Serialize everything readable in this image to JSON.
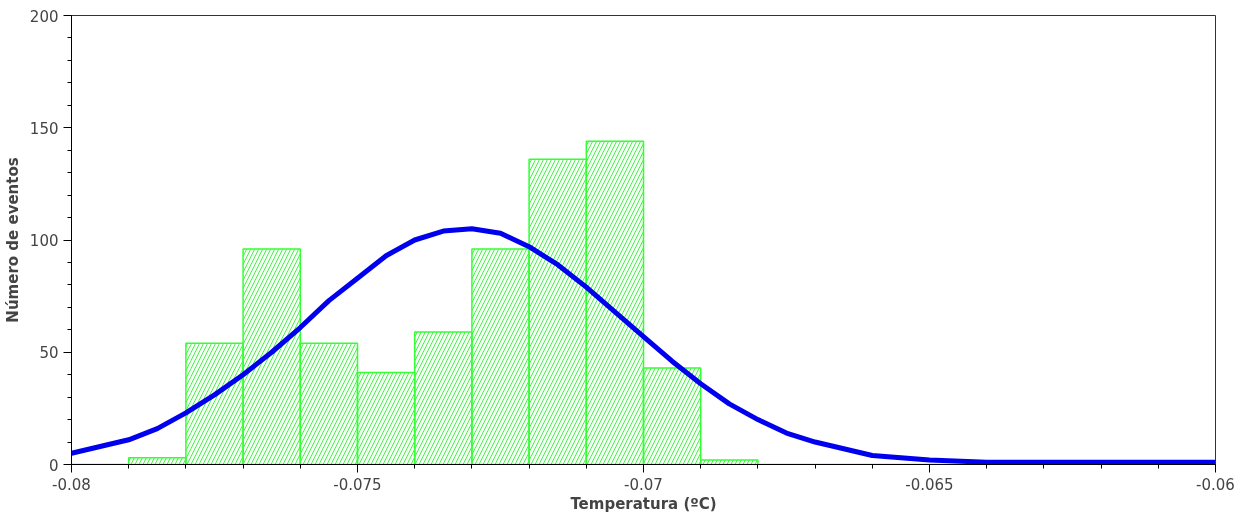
{
  "chart_data": {
    "type": "histogram",
    "xlabel": "Temperatura (ºC)",
    "ylabel": "Número de eventos",
    "bins": [
      -0.08,
      -0.079,
      -0.078,
      -0.077,
      -0.076,
      -0.075,
      -0.074,
      -0.073,
      -0.072,
      -0.071,
      -0.07,
      -0.069,
      -0.068,
      -0.067,
      -0.066,
      -0.065,
      -0.064,
      -0.063,
      -0.062,
      -0.061,
      -0.06
    ],
    "values": [
      0,
      3,
      54,
      96,
      54,
      41,
      59,
      96,
      136,
      144,
      43,
      2,
      0,
      0,
      0,
      0,
      0,
      0,
      0,
      0
    ],
    "color": "#33ff33",
    "xlim": [
      -0.08,
      -0.06
    ],
    "xticks": [
      -0.08,
      -0.075,
      -0.07,
      -0.065,
      -0.06
    ],
    "ylim": [
      0,
      200
    ],
    "yticks": [
      0,
      50,
      100,
      150,
      200
    ],
    "grid": false,
    "series": [
      {
        "type": "line",
        "color": "#0000ee",
        "x": [
          -0.08,
          -0.0795,
          -0.079,
          -0.0785,
          -0.078,
          -0.0775,
          -0.077,
          -0.0765,
          -0.076,
          -0.0755,
          -0.075,
          -0.0745,
          -0.074,
          -0.0735,
          -0.073,
          -0.0725,
          -0.072,
          -0.0715,
          -0.071,
          -0.0705,
          -0.07,
          -0.0695,
          -0.069,
          -0.0685,
          -0.068,
          -0.0675,
          -0.067,
          -0.0665,
          -0.066,
          -0.0655,
          -0.065,
          -0.064,
          -0.063,
          -0.062,
          -0.061,
          -0.06
        ],
        "values": [
          5,
          8,
          11,
          16,
          23,
          31,
          40,
          50,
          61,
          73,
          83,
          93,
          100,
          104,
          105,
          103,
          97,
          89,
          79,
          68,
          57,
          46,
          36,
          27,
          20,
          14,
          10,
          7,
          4,
          3,
          2,
          1,
          1,
          1,
          1,
          1
        ]
      }
    ]
  }
}
